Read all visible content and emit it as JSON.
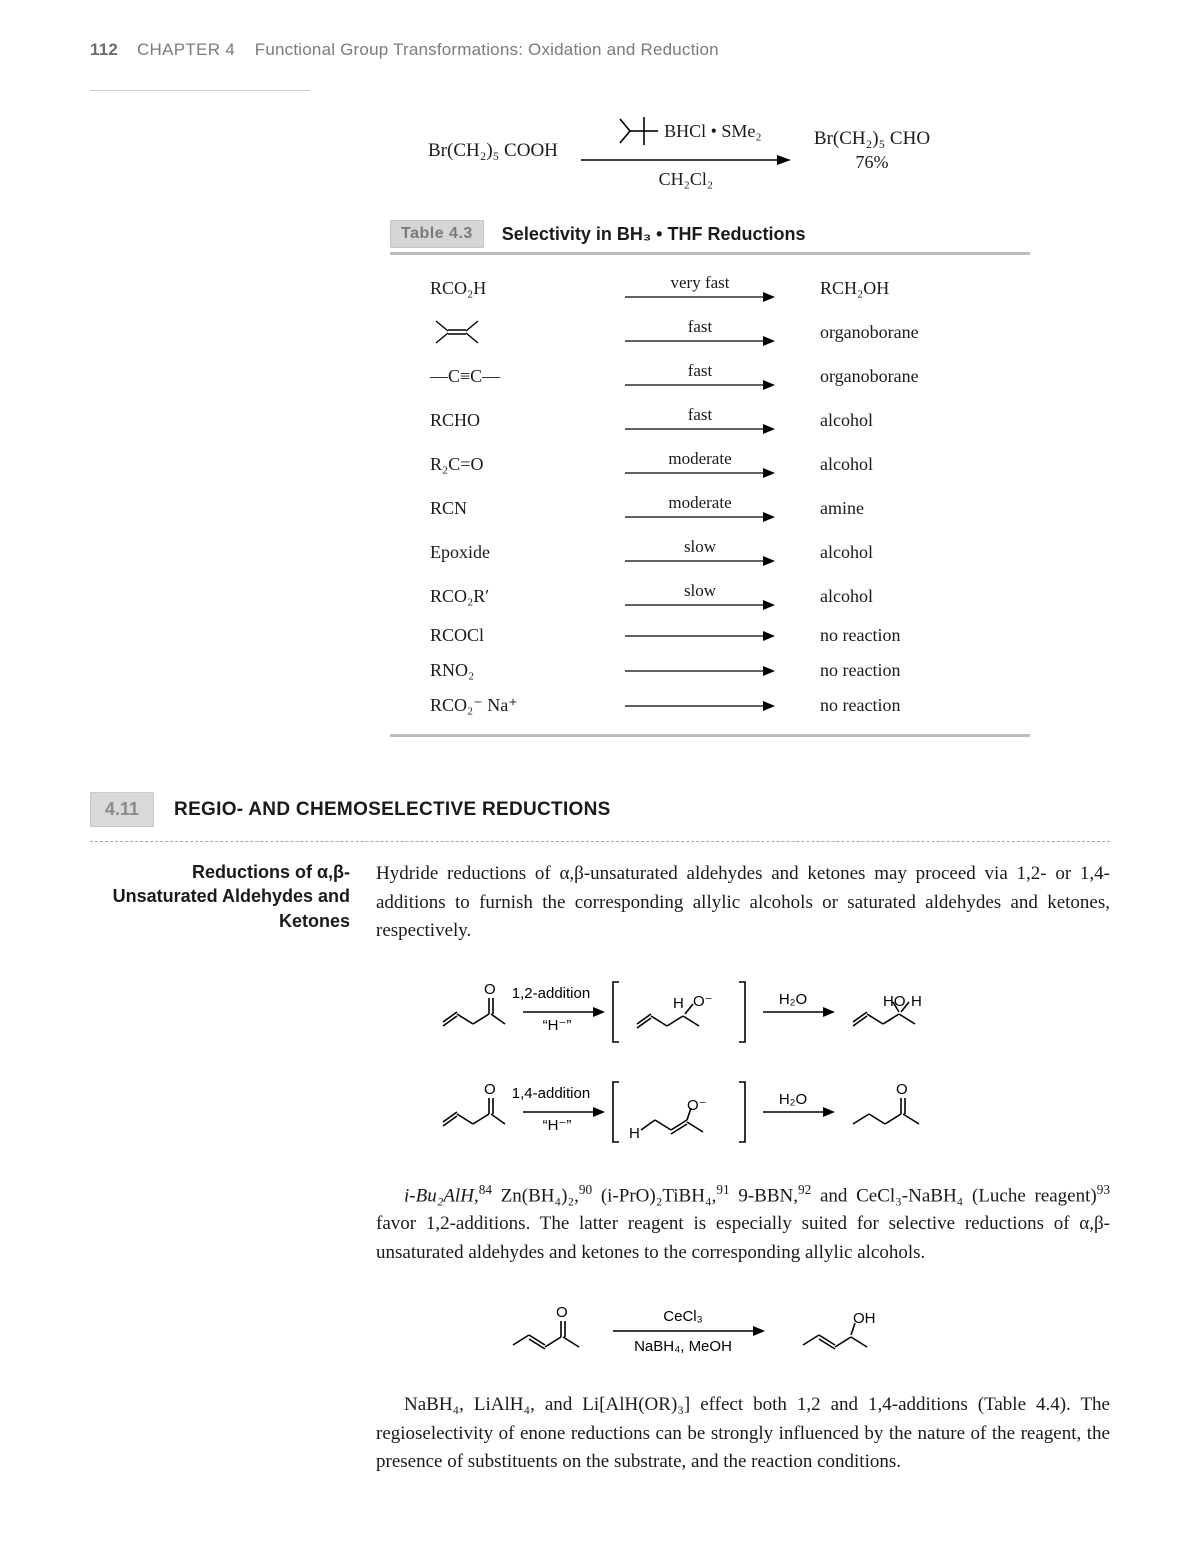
{
  "page": {
    "number": "112",
    "chapter_label": "CHAPTER 4",
    "chapter_title": "Functional Group Transformations: Oxidation and Reduction"
  },
  "top_scheme": {
    "start": "Br(CH₂)₅ COOH",
    "reagent_above": "BHCl • SMe₂",
    "reagent_below": "CH₂Cl₂",
    "product": "Br(CH₂)₅ CHO",
    "yield": "76%"
  },
  "table43": {
    "tag": "Table 4.3",
    "title": "Selectivity in BH₃ • THF Reductions",
    "rows": [
      {
        "fg": "RCO₂H",
        "rate": "very fast",
        "prod": "RCH₂OH"
      },
      {
        "fg": "ALKENE",
        "rate": "fast",
        "prod": "organoborane"
      },
      {
        "fg": "ALKYNE",
        "rate": "fast",
        "prod": "organoborane"
      },
      {
        "fg": "RCHO",
        "rate": "fast",
        "prod": "alcohol"
      },
      {
        "fg": "R₂C=O",
        "rate": "moderate",
        "prod": "alcohol"
      },
      {
        "fg": "RCN",
        "rate": "moderate",
        "prod": "amine"
      },
      {
        "fg": "Epoxide",
        "rate": "slow",
        "prod": "alcohol"
      },
      {
        "fg": "RCO₂R′",
        "rate": "slow",
        "prod": "alcohol"
      },
      {
        "fg": "RCOCl",
        "rate": "",
        "prod": "no reaction"
      },
      {
        "fg": "RNO₂",
        "rate": "",
        "prod": "no reaction"
      },
      {
        "fg": "RCO₂⁻ Na⁺",
        "rate": "",
        "prod": "no reaction"
      }
    ]
  },
  "section": {
    "number": "4.11",
    "title": "REGIO- AND CHEMOSELECTIVE REDUCTIONS",
    "side_title": "Reductions of α,β-Unsaturated Aldehydes and Ketones",
    "para1": "Hydride reductions of α,β-unsaturated aldehydes and ketones may proceed via 1,2- or 1,4-additions to furnish the corresponding allylic alcohols or saturated aldehydes and ketones, respectively.",
    "scheme12_label_top": "1,2-addition",
    "scheme12_label_below": "“H⁻”",
    "scheme12_workup": "H₂O",
    "scheme14_label_top": "1,4-addition",
    "scheme14_label_below": "“H⁻”",
    "scheme14_workup": "H₂O",
    "para2_a": "i-Bu₂AlH,",
    "ref84": "84",
    "para2_b": "  Zn(BH₄)₂,",
    "ref90": "90",
    "para2_c": "  (i-PrO)₂TiBH₄,",
    "ref91": "91",
    "para2_d": "  9-BBN,",
    "ref92": "92",
    "para2_e": "  and CeCl₃-NaBH₄ (Luche reagent)",
    "ref93": "93",
    "para2_f": " favor 1,2-additions. The latter reagent is especially suited for selective reductions of α,β-unsaturated aldehydes and ketones to the corresponding allylic alcohols.",
    "luche_top": "CeCl₃",
    "luche_bottom": "NaBH₄, MeOH",
    "para3": "NaBH₄, LiAlH₄, and Li[AlH(OR)₃] effect both 1,2 and 1,4-additions (Table 4.4). The regioselectivity of enone reductions can be strongly influenced by the nature of the reagent, the presence of substituents on the substrate, and the reaction conditions."
  },
  "style": {
    "text_color": "#1a1a1a",
    "muted_color": "#7b7b7b",
    "tag_bg": "#d6d6d6",
    "rule_color": "#bdbdbd",
    "arrow_color": "#000000"
  }
}
